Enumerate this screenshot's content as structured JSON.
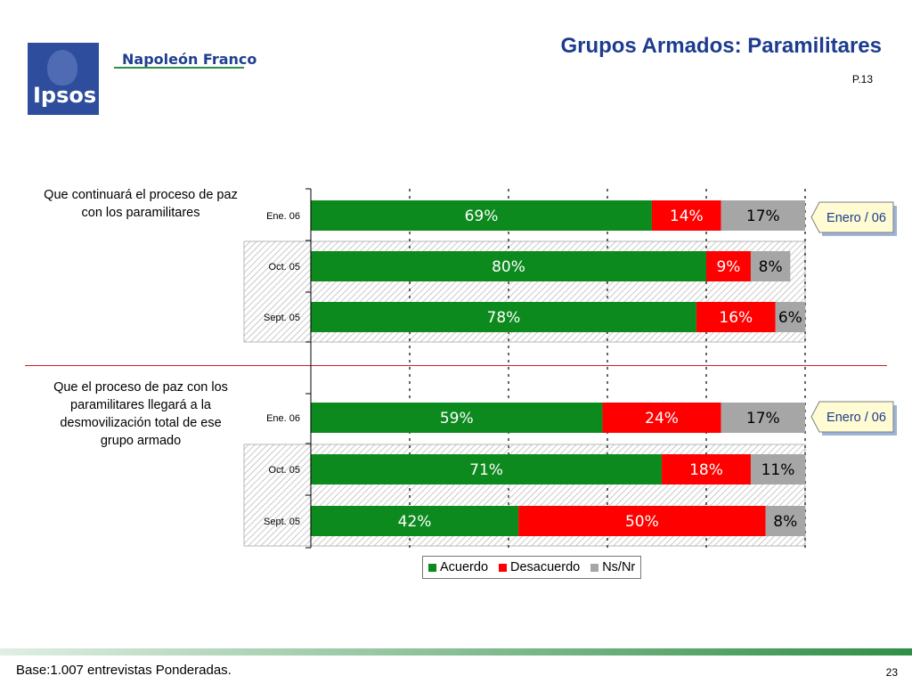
{
  "header": {
    "logo_text": "Ipsos",
    "brand": "Napoleón Franco",
    "title": "Grupos Armados: Paramilitares",
    "page_ref": "P.13"
  },
  "questions": [
    "Que continuará el proceso de paz con los paramilitares",
    "Que el proceso de paz con los paramilitares llegará a la desmovilización total de ese grupo armado"
  ],
  "callouts": [
    "Enero / 06",
    "Enero / 06"
  ],
  "footer": {
    "base": "Base:1.007 entrevistas Ponderadas.",
    "page_number": "23"
  },
  "colors": {
    "acuerdo": "#0d8a1e",
    "desacuerdo": "#ff0000",
    "nsnr": "#a6a6a6",
    "title": "#1c3c8f",
    "callout_bg": "#fffbd2"
  },
  "chart_data": {
    "type": "bar",
    "orientation": "horizontal",
    "stacked": true,
    "categories": [
      "Ene. 06",
      "Oct. 05",
      "Sept. 05",
      "Ene. 06",
      "Oct. 05",
      "Sept. 05"
    ],
    "series": [
      {
        "name": "Acuerdo",
        "values": [
          69,
          80,
          78,
          59,
          71,
          42
        ],
        "labels": [
          "69%",
          "80%",
          "78%",
          "59%",
          "71%",
          "42%"
        ]
      },
      {
        "name": "Desacuerdo",
        "values": [
          14,
          9,
          16,
          24,
          18,
          50
        ],
        "labels": [
          "14%",
          "9%",
          "16%",
          "24%",
          "18%",
          "50%"
        ]
      },
      {
        "name": "Ns/Nr",
        "values": [
          17,
          8,
          6,
          17,
          11,
          8
        ],
        "labels": [
          "17%",
          "8%",
          "6%",
          "17%",
          "11%",
          "8%"
        ]
      }
    ],
    "xlim": [
      0,
      100
    ],
    "grid": true,
    "legend": "bottom"
  }
}
